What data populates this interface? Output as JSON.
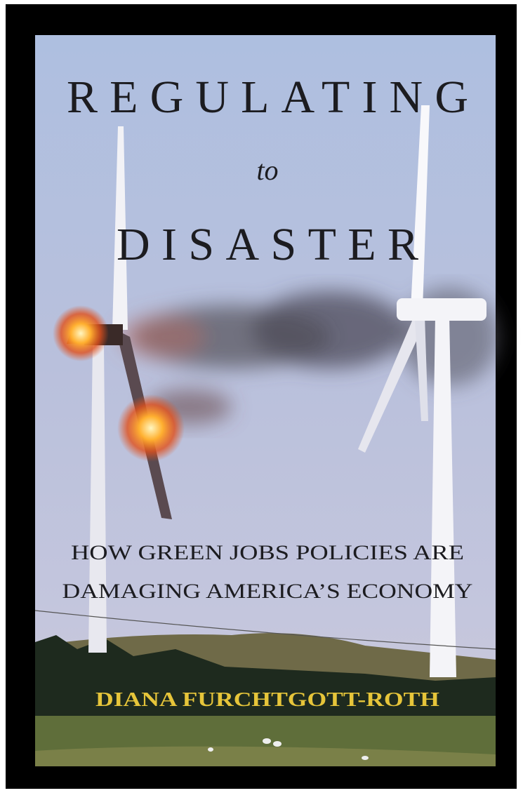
{
  "cover": {
    "title": {
      "line1": "REGULATING",
      "line2": "to",
      "line3": "DISASTER"
    },
    "subtitle": {
      "line1": "HOW GREEN JOBS POLICIES ARE",
      "line2": "DAMAGING AMERICA’S ECONOMY"
    },
    "author": "DIANA FURCHTGOTT-ROTH"
  }
}
